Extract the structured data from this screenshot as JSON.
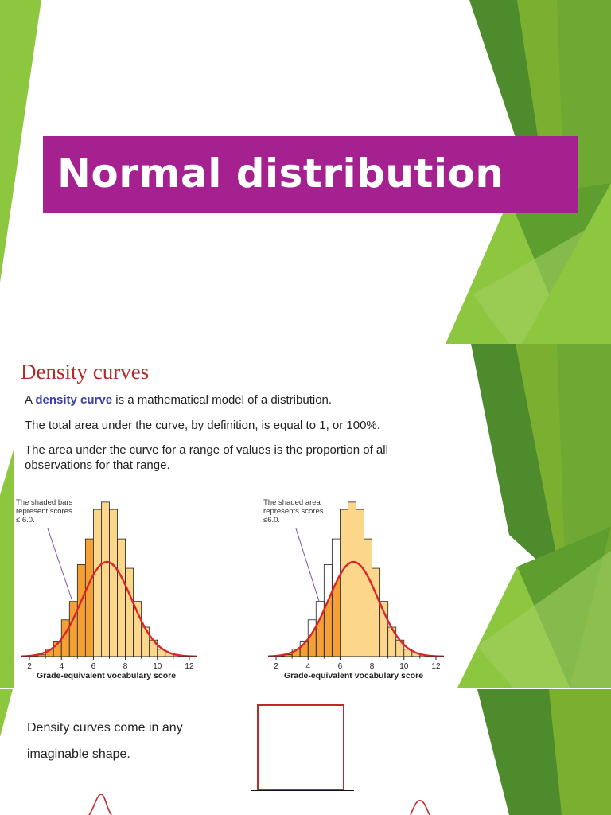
{
  "slide1": {
    "title": "Normal distribution",
    "colors": {
      "title_bg": "#A4218F",
      "title_text": "#FFFFFF",
      "accent_light": "#8DC63F",
      "accent_dark": "#4E8B2C"
    }
  },
  "slide2": {
    "heading": "Density curves",
    "line1": {
      "prefix": "A ",
      "term": "density curve",
      "suffix": " is a mathematical model of a distribution."
    },
    "line2": "The total area under the curve, by definition, is equal to 1, or 100%.",
    "line3a": "The area under the curve for a range of values is the proportion of all",
    "line3b": "observations for that range.",
    "left_annotation": [
      "The shaded bars",
      "represent scores",
      "≤ 6.0."
    ],
    "right_annotation": [
      "The shaded area",
      "represents scores",
      "≤6.0."
    ],
    "colors": {
      "heading": "#B22A2A",
      "term": "#3A3FA8",
      "bar_dark": "#F4A035",
      "bar_light": "#FCD68A",
      "curve": "#D8262E",
      "pointer": "#7B4FB2"
    }
  },
  "chart_data": [
    {
      "type": "bar",
      "x": [
        2.25,
        2.75,
        3.25,
        3.75,
        4.25,
        4.75,
        5.25,
        5.75,
        6.25,
        6.75,
        7.25,
        7.75,
        8.25,
        8.75,
        9.25,
        9.75,
        10.25,
        10.75,
        11.25,
        11.75
      ],
      "values": [
        0.002,
        0.005,
        0.02,
        0.04,
        0.1,
        0.15,
        0.25,
        0.32,
        0.4,
        0.42,
        0.4,
        0.32,
        0.24,
        0.15,
        0.08,
        0.045,
        0.02,
        0.01,
        0.004,
        0.002
      ],
      "highlight_max_x": 6.0,
      "xlabel": "Grade-equivalent vocabulary score",
      "ticks": [
        2,
        4,
        6,
        8,
        10,
        12
      ],
      "xlim": [
        1.5,
        12.5
      ],
      "ylim": [
        0,
        0.45
      ],
      "curve": {
        "type": "normal",
        "mean": 6.84,
        "sd": 1.55
      },
      "annotation": "The shaded bars represent scores ≤ 6.0."
    },
    {
      "type": "area",
      "x": [
        2.25,
        2.75,
        3.25,
        3.75,
        4.25,
        4.75,
        5.25,
        5.75,
        6.25,
        6.75,
        7.25,
        7.75,
        8.25,
        8.75,
        9.25,
        9.75,
        10.25,
        10.75,
        11.25,
        11.75
      ],
      "values": [
        0.002,
        0.005,
        0.02,
        0.04,
        0.1,
        0.15,
        0.25,
        0.32,
        0.4,
        0.42,
        0.4,
        0.32,
        0.24,
        0.15,
        0.08,
        0.045,
        0.02,
        0.01,
        0.004,
        0.002
      ],
      "highlight_max_x": 6.0,
      "xlabel": "Grade-equivalent vocabulary score",
      "ticks": [
        2,
        4,
        6,
        8,
        10,
        12
      ],
      "xlim": [
        1.5,
        12.5
      ],
      "ylim": [
        0,
        0.45
      ],
      "curve": {
        "type": "normal",
        "mean": 6.84,
        "sd": 1.55
      },
      "annotation": "The shaded area represents scores ≤6.0."
    }
  ],
  "slide3": {
    "text_line1": "Density curves come in any",
    "text_line2": "imaginable shape.",
    "colors": {
      "shape_stroke": "#C0282E"
    }
  }
}
